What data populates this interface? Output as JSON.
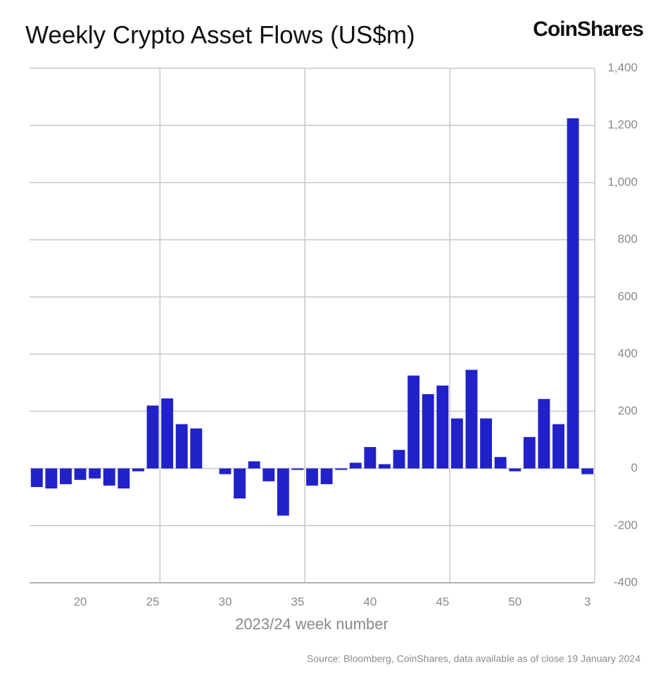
{
  "chart_data": {
    "type": "bar",
    "title": "Weekly Crypto Asset Flows (US$m)",
    "brand": "CoinShares",
    "x_label": "2023/24 week number",
    "source": "Source: Bloomberg, CoinShares, data available as of close 19 January 2024",
    "categories": [
      null,
      null,
      null,
      "20",
      null,
      null,
      null,
      null,
      "25",
      null,
      null,
      null,
      null,
      "30",
      null,
      null,
      null,
      null,
      "35",
      null,
      null,
      null,
      null,
      "40",
      null,
      null,
      null,
      null,
      "45",
      null,
      null,
      null,
      null,
      "50",
      null,
      null,
      null,
      null,
      "3"
    ],
    "values": [
      -65,
      -70,
      -55,
      -40,
      -35,
      -60,
      -70,
      -10,
      220,
      245,
      155,
      140,
      0,
      -20,
      -105,
      25,
      -45,
      -165,
      -5,
      -60,
      -55,
      -5,
      20,
      75,
      15,
      65,
      325,
      260,
      290,
      175,
      345,
      175,
      40,
      -10,
      110,
      243,
      155,
      1225,
      -20
    ],
    "color": "#2121c9",
    "ylim": [
      -400,
      1400
    ],
    "yticks": [
      -400,
      -200,
      0,
      200,
      400,
      600,
      800,
      {
        "value": 1000,
        "label": "1,000"
      },
      {
        "value": 1200,
        "label": "1,200"
      },
      {
        "value": 1400,
        "label": "1,400"
      }
    ],
    "y_axis_side": "right",
    "grid": true
  }
}
